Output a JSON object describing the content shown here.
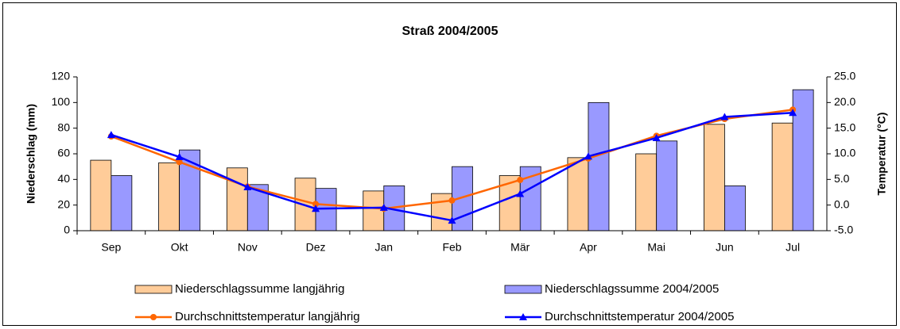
{
  "chart_data": {
    "type": "bar",
    "title": "Straß 2004/2005",
    "categories": [
      "Sep",
      "Okt",
      "Nov",
      "Dez",
      "Jan",
      "Feb",
      "Mär",
      "Apr",
      "Mai",
      "Jun",
      "Jul"
    ],
    "ylabel": "Niederschlag (mm)",
    "y2label": "Temperatur (°C)",
    "ylim": [
      0,
      120
    ],
    "yticks": [
      0,
      20,
      40,
      60,
      80,
      100,
      120
    ],
    "y2lim": [
      -5,
      25
    ],
    "y2ticks": [
      {
        "value": -5,
        "label": "-5.0"
      },
      {
        "value": 0,
        "label": "0.0"
      },
      {
        "value": 5,
        "label": "5.0"
      },
      {
        "value": 10,
        "label": "10.0"
      },
      {
        "value": 15,
        "label": "15.0"
      },
      {
        "value": 20,
        "label": "20.0"
      },
      {
        "value": 25,
        "label": "25.0"
      }
    ],
    "series": [
      {
        "name": "Niederschlagssumme langjährig",
        "type": "bar",
        "axis": "y",
        "color": "#ffcc99",
        "values": [
          55,
          53,
          49,
          41,
          31,
          29,
          43,
          57,
          60,
          83,
          84
        ]
      },
      {
        "name": "Niederschlagssumme 2004/2005",
        "type": "bar",
        "axis": "y",
        "color": "#9999ff",
        "values": [
          43,
          63,
          36,
          33,
          35,
          50,
          50,
          100,
          70,
          35,
          110
        ]
      },
      {
        "name": "Durchschnittstemperatur langjährig",
        "type": "line",
        "axis": "y2",
        "color": "#ff6600",
        "marker": "circle",
        "values": [
          13.4,
          8.4,
          3.6,
          0.2,
          -0.7,
          0.9,
          4.9,
          9.1,
          13.5,
          16.8,
          18.6
        ]
      },
      {
        "name": "Durchschnittstemperatur 2004/2005",
        "type": "line",
        "axis": "y2",
        "color": "#0000ff",
        "marker": "triangle",
        "values": [
          13.7,
          9.4,
          3.5,
          -0.7,
          -0.5,
          -3.0,
          2.2,
          9.5,
          13.1,
          17.2,
          18.0
        ]
      }
    ]
  }
}
